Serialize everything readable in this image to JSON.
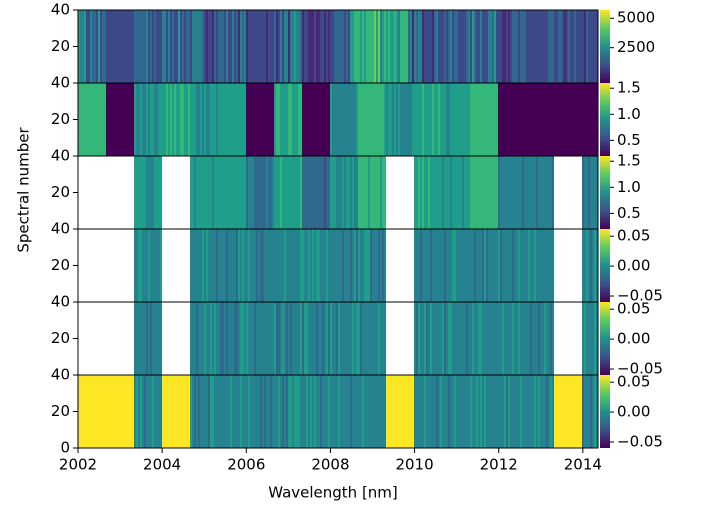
{
  "chart_data": {
    "type": "heatmap-stack",
    "xlabel": "Wavelength [nm]",
    "ylabel": "Spectral number",
    "xlim": [
      2002,
      2014.36
    ],
    "xticks": [
      2002,
      2004,
      2006,
      2008,
      2010,
      2012,
      2014
    ],
    "panels": [
      {
        "ylim": [
          0,
          40
        ],
        "yticks": [
          20,
          40
        ],
        "clim": [
          -500,
          5700
        ],
        "cticks": [
          2500,
          5000
        ]
      },
      {
        "ylim": [
          0,
          40
        ],
        "yticks": [
          20,
          40
        ],
        "clim": [
          0.2,
          1.6
        ],
        "cticks": [
          0.5,
          {
            "value": 1,
            "label": "1.0"
          },
          1.5
        ]
      },
      {
        "ylim": [
          0,
          40
        ],
        "yticks": [
          20,
          40
        ],
        "clim": [
          0.2,
          1.6
        ],
        "cticks": [
          0.5,
          {
            "value": 1,
            "label": "1.0"
          },
          1.5
        ]
      },
      {
        "ylim": [
          0,
          40
        ],
        "yticks": [
          20,
          40
        ],
        "clim": [
          -0.06,
          0.062
        ],
        "cticks": [
          {
            "value": -0.05,
            "label": "−0.05"
          },
          {
            "value": 0,
            "label": "0.00"
          },
          0.05
        ]
      },
      {
        "ylim": [
          0,
          40
        ],
        "yticks": [
          20,
          40
        ],
        "clim": [
          -0.06,
          0.062
        ],
        "cticks": [
          {
            "value": -0.05,
            "label": "−0.05"
          },
          {
            "value": 0,
            "label": "0.00"
          },
          0.05
        ]
      },
      {
        "ylim": [
          0,
          40
        ],
        "yticks": [
          0,
          20,
          40
        ],
        "clim": [
          -0.06,
          0.062
        ],
        "cticks": [
          {
            "value": -0.05,
            "label": "−0.05"
          },
          {
            "value": 0,
            "label": "0.00"
          },
          0.05
        ]
      }
    ]
  }
}
